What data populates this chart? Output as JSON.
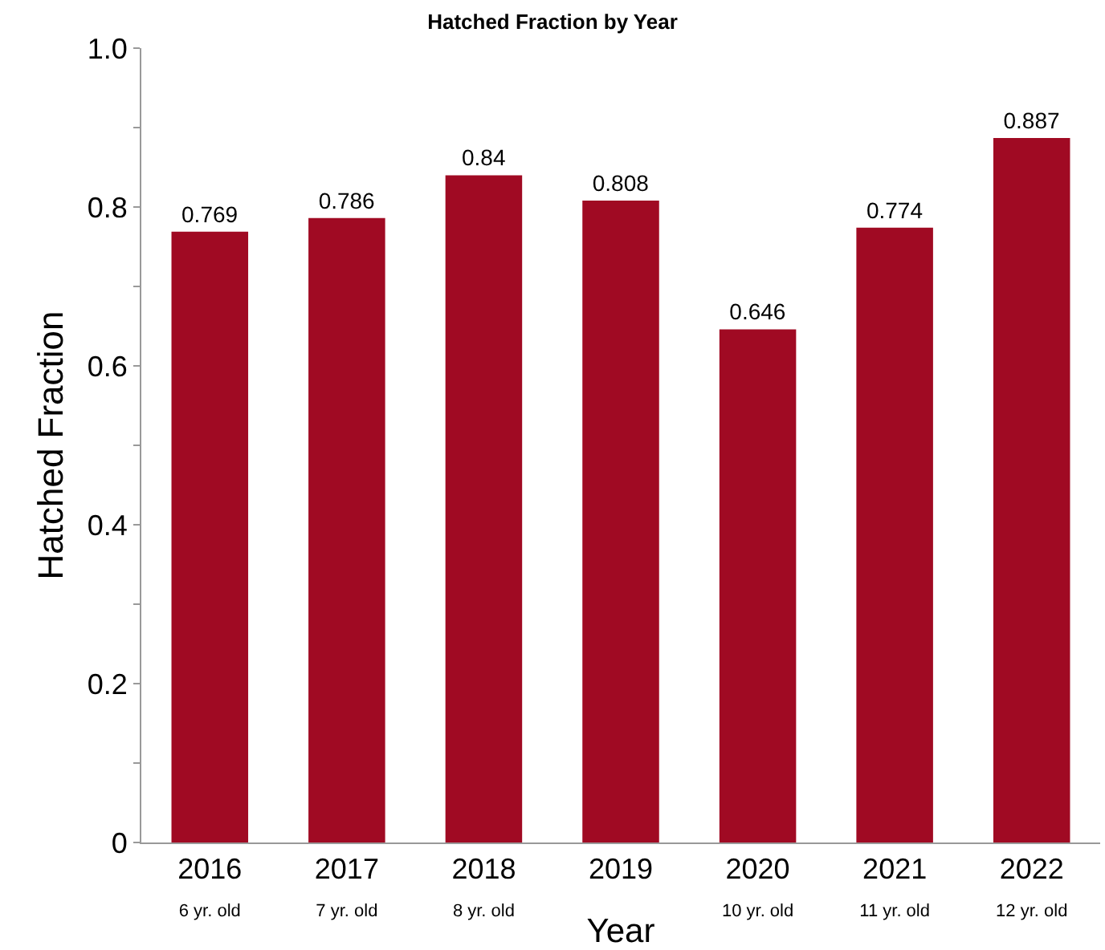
{
  "chart_data": {
    "type": "bar",
    "title": "Hatched Fraction by Year",
    "xlabel": "Year",
    "ylabel": "Hatched Fraction",
    "categories": [
      "2016\n6 yr. old",
      "2017\n7 yr. old",
      "2018\n8 yr. old",
      "2019",
      "2020\n10 yr. old",
      "2021\n11 yr. old",
      "2022\n12 yr. old"
    ],
    "values": [
      0.769,
      0.786,
      0.84,
      0.808,
      0.646,
      0.774,
      0.887
    ],
    "color": "#a00a23",
    "ylim": [
      0,
      1
    ],
    "yticks": [
      0,
      {
        "value": 0.1,
        "label": null
      },
      0.2,
      {
        "value": 0.3,
        "label": null
      },
      0.4,
      {
        "value": 0.5,
        "label": null
      },
      0.6,
      {
        "value": 0.7,
        "label": null
      },
      0.8,
      {
        "value": 0.9,
        "label": null
      },
      {
        "value": 1,
        "label": "1.0"
      }
    ],
    "data_labels": true
  }
}
